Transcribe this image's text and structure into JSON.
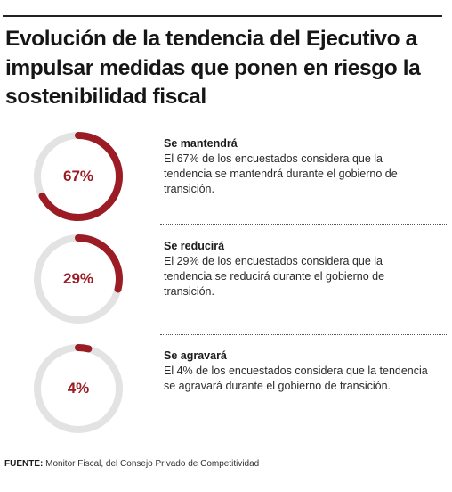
{
  "title": "Evolución de la tendencia del Ejecutivo a impulsar medidas que ponen en riesgo la sostenibilidad fiscal",
  "chart_data": {
    "type": "donut",
    "title": "Evolución de la tendencia del Ejecutivo a impulsar medidas que ponen en riesgo la sostenibilidad fiscal",
    "unit": "%",
    "range": [
      0,
      100
    ],
    "items": [
      {
        "value": 67,
        "label": "67%",
        "heading": "Se mantendrá",
        "description": "El 67% de los encuestados considera que la tendencia se mantendrá durante el gobierno de transición."
      },
      {
        "value": 29,
        "label": "29%",
        "heading": "Se reducirá",
        "description": "El 29% de los encuestados considera que la tendencia se reducirá durante el gobierno de transición."
      },
      {
        "value": 4,
        "label": "4%",
        "heading": "Se agravará",
        "description": "El 4% de los encuestados considera que la tendencia se agravará durante el gobierno de transición."
      }
    ]
  },
  "source": {
    "label": "FUENTE:",
    "text": "Monitor Fiscal, del Consejo Privado de Competitividad"
  },
  "colors": {
    "accent": "#9b1c24",
    "track": "#e3e3e3",
    "text": "#1b1b1b"
  }
}
